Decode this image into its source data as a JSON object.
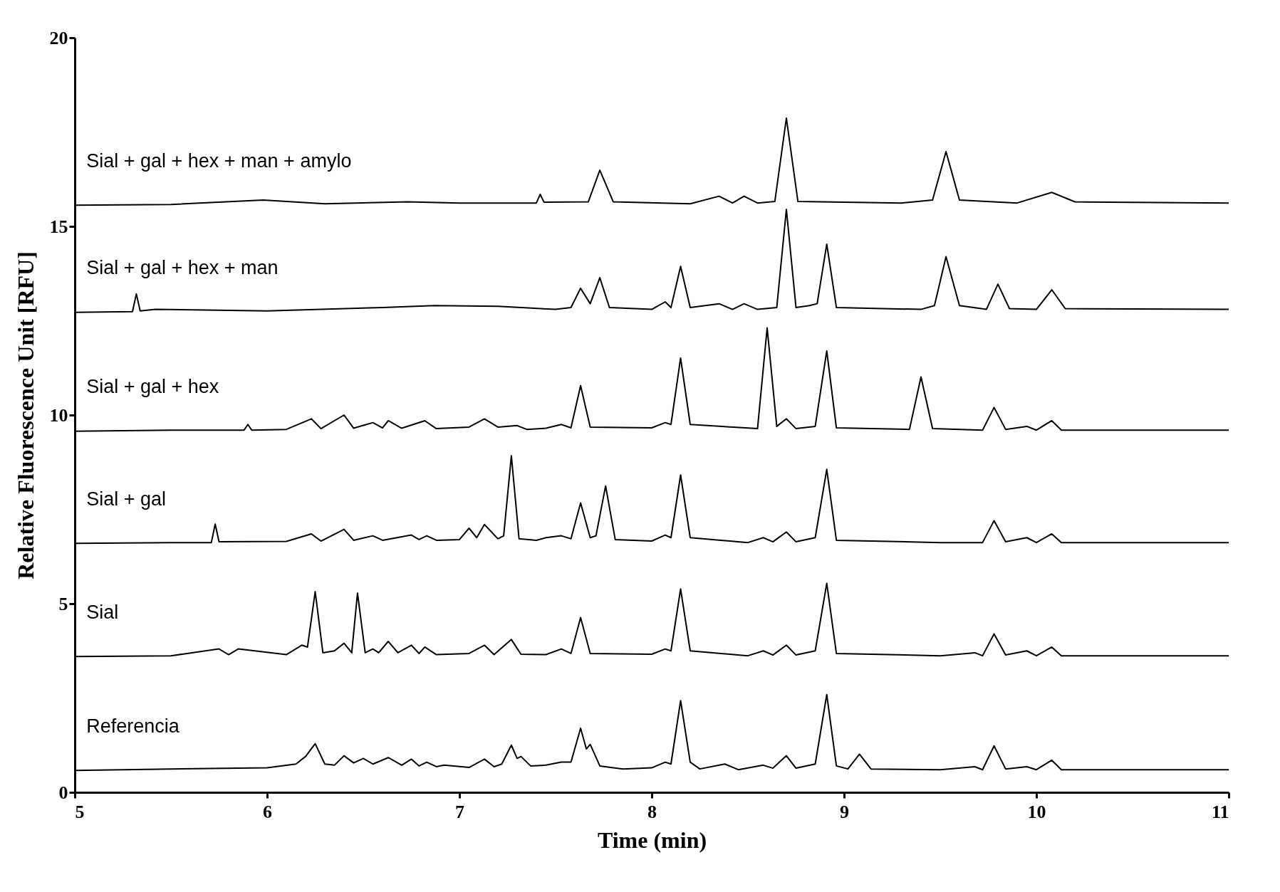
{
  "chart_data": {
    "type": "line",
    "xlabel": "Time (min)",
    "ylabel": "Relative Fluorescence Unit [RFU]",
    "xlim": [
      5,
      11
    ],
    "xticks": [
      5,
      6,
      7,
      8,
      9,
      10,
      11
    ],
    "ylim": [
      0,
      20
    ],
    "yticks": [
      0,
      5,
      10,
      15,
      20
    ],
    "grid": false,
    "legend": false,
    "series": [
      {
        "name": "Referencia",
        "color": "#000000",
        "x": [
          5.0,
          5.5,
          6.0,
          6.15,
          6.2,
          6.25,
          6.3,
          6.35,
          6.4,
          6.45,
          6.5,
          6.55,
          6.63,
          6.7,
          6.75,
          6.79,
          6.83,
          6.88,
          6.92,
          7.05,
          7.13,
          7.18,
          7.22,
          7.27,
          7.3,
          7.32,
          7.37,
          7.45,
          7.53,
          7.58,
          7.63,
          7.66,
          7.68,
          7.73,
          7.85,
          8.0,
          8.07,
          8.1,
          8.15,
          8.2,
          8.25,
          8.38,
          8.45,
          8.58,
          8.63,
          8.7,
          8.75,
          8.85,
          8.91,
          8.96,
          9.02,
          9.08,
          9.14,
          9.5,
          9.68,
          9.72,
          9.78,
          9.84,
          9.95,
          10.0,
          10.08,
          10.13,
          11.0
        ],
        "values": [
          0.58,
          0.62,
          0.65,
          0.75,
          0.95,
          1.29,
          0.75,
          0.72,
          0.97,
          0.78,
          0.9,
          0.75,
          0.92,
          0.72,
          0.88,
          0.7,
          0.8,
          0.68,
          0.72,
          0.66,
          0.88,
          0.68,
          0.75,
          1.25,
          0.9,
          0.95,
          0.7,
          0.72,
          0.8,
          0.8,
          1.7,
          1.15,
          1.27,
          0.7,
          0.62,
          0.65,
          0.8,
          0.75,
          2.43,
          0.8,
          0.62,
          0.75,
          0.6,
          0.72,
          0.64,
          0.97,
          0.64,
          0.75,
          2.59,
          0.7,
          0.62,
          1.01,
          0.62,
          0.6,
          0.68,
          0.6,
          1.23,
          0.62,
          0.68,
          0.6,
          0.85,
          0.6,
          0.6
        ]
      },
      {
        "name": "Sial",
        "color": "#000000",
        "x": [
          5.0,
          5.5,
          5.75,
          5.8,
          5.85,
          6.1,
          6.18,
          6.21,
          6.25,
          6.29,
          6.35,
          6.4,
          6.44,
          6.47,
          6.51,
          6.55,
          6.58,
          6.63,
          6.68,
          6.75,
          6.79,
          6.82,
          6.88,
          7.05,
          7.13,
          7.18,
          7.27,
          7.32,
          7.45,
          7.53,
          7.58,
          7.63,
          7.68,
          8.0,
          8.07,
          8.1,
          8.15,
          8.2,
          8.5,
          8.58,
          8.63,
          8.7,
          8.75,
          8.85,
          8.91,
          8.96,
          9.5,
          9.68,
          9.72,
          9.78,
          9.84,
          9.95,
          10.0,
          10.08,
          10.13,
          11.0
        ],
        "values": [
          3.6,
          3.62,
          3.8,
          3.65,
          3.8,
          3.65,
          3.9,
          3.85,
          5.32,
          3.7,
          3.75,
          3.95,
          3.7,
          5.28,
          3.7,
          3.8,
          3.7,
          4.0,
          3.7,
          3.9,
          3.68,
          3.85,
          3.65,
          3.68,
          3.9,
          3.65,
          4.05,
          3.66,
          3.65,
          3.8,
          3.68,
          4.63,
          3.68,
          3.66,
          3.8,
          3.75,
          5.39,
          3.75,
          3.62,
          3.75,
          3.64,
          3.9,
          3.64,
          3.75,
          5.54,
          3.68,
          3.62,
          3.7,
          3.62,
          4.2,
          3.64,
          3.75,
          3.62,
          3.85,
          3.62,
          3.62
        ]
      },
      {
        "name": "Sial + gal",
        "color": "#000000",
        "x": [
          5.0,
          5.5,
          5.71,
          5.73,
          5.75,
          6.1,
          6.23,
          6.28,
          6.4,
          6.45,
          6.55,
          6.6,
          6.75,
          6.79,
          6.83,
          6.88,
          7.0,
          7.05,
          7.09,
          7.13,
          7.2,
          7.23,
          7.27,
          7.31,
          7.4,
          7.45,
          7.53,
          7.58,
          7.63,
          7.68,
          7.71,
          7.76,
          7.81,
          8.0,
          8.07,
          8.1,
          8.15,
          8.2,
          8.5,
          8.58,
          8.63,
          8.7,
          8.75,
          8.85,
          8.91,
          8.96,
          9.5,
          9.72,
          9.78,
          9.84,
          9.95,
          10.0,
          10.08,
          10.13,
          11.0
        ],
        "values": [
          6.6,
          6.62,
          6.62,
          7.11,
          6.64,
          6.65,
          6.85,
          6.66,
          6.97,
          6.68,
          6.8,
          6.68,
          6.82,
          6.7,
          6.8,
          6.68,
          6.7,
          7.0,
          6.75,
          7.1,
          6.72,
          6.8,
          8.92,
          6.72,
          6.68,
          6.75,
          6.8,
          6.72,
          7.67,
          6.75,
          6.8,
          8.12,
          6.7,
          6.66,
          6.82,
          6.75,
          8.41,
          6.75,
          6.62,
          6.75,
          6.64,
          6.9,
          6.64,
          6.75,
          8.56,
          6.68,
          6.62,
          6.62,
          7.2,
          6.64,
          6.75,
          6.62,
          6.85,
          6.62,
          6.62
        ]
      },
      {
        "name": "Sial + gal + hex",
        "color": "#000000",
        "x": [
          5.0,
          5.5,
          5.88,
          5.9,
          5.92,
          6.1,
          6.23,
          6.28,
          6.4,
          6.45,
          6.55,
          6.6,
          6.63,
          6.7,
          6.82,
          6.88,
          7.05,
          7.13,
          7.2,
          7.3,
          7.35,
          7.45,
          7.53,
          7.58,
          7.63,
          7.68,
          8.0,
          8.07,
          8.1,
          8.15,
          8.2,
          8.55,
          8.6,
          8.65,
          8.7,
          8.75,
          8.85,
          8.91,
          8.96,
          9.34,
          9.4,
          9.46,
          9.72,
          9.78,
          9.84,
          9.95,
          10.0,
          10.08,
          10.13,
          11.0
        ],
        "values": [
          9.57,
          9.6,
          9.6,
          9.75,
          9.6,
          9.62,
          9.9,
          9.64,
          10.0,
          9.65,
          9.8,
          9.66,
          9.85,
          9.65,
          9.85,
          9.64,
          9.68,
          9.9,
          9.68,
          9.72,
          9.62,
          9.65,
          9.75,
          9.66,
          10.78,
          9.68,
          9.66,
          9.8,
          9.75,
          11.51,
          9.75,
          9.64,
          12.31,
          9.7,
          9.9,
          9.64,
          9.7,
          11.7,
          9.66,
          9.62,
          11.01,
          9.64,
          9.6,
          10.2,
          9.62,
          9.7,
          9.6,
          9.85,
          9.6,
          9.6
        ]
      },
      {
        "name": "Sial + gal + hex + man",
        "color": "#000000",
        "x": [
          5.0,
          5.3,
          5.32,
          5.34,
          5.42,
          6.0,
          6.6,
          6.87,
          7.2,
          7.5,
          7.58,
          7.63,
          7.68,
          7.73,
          7.78,
          8.0,
          8.07,
          8.1,
          8.15,
          8.2,
          8.35,
          8.42,
          8.48,
          8.55,
          8.65,
          8.7,
          8.75,
          8.82,
          8.86,
          8.91,
          8.96,
          9.4,
          9.47,
          9.53,
          9.6,
          9.74,
          9.8,
          9.86,
          10.0,
          10.08,
          10.15,
          11.0
        ],
        "values": [
          12.72,
          12.74,
          13.21,
          12.76,
          12.8,
          12.76,
          12.85,
          12.9,
          12.88,
          12.8,
          12.85,
          13.36,
          12.95,
          13.64,
          12.85,
          12.8,
          13.0,
          12.85,
          13.94,
          12.85,
          12.95,
          12.8,
          12.95,
          12.8,
          12.85,
          15.45,
          12.85,
          12.9,
          12.95,
          14.53,
          12.85,
          12.8,
          12.9,
          14.2,
          12.9,
          12.8,
          13.47,
          12.82,
          12.8,
          13.32,
          12.82,
          12.8
        ]
      },
      {
        "name": "Sial + gal + hex + man + amylo",
        "color": "#000000",
        "x": [
          5.0,
          5.5,
          5.98,
          6.3,
          6.73,
          7.0,
          7.4,
          7.42,
          7.44,
          7.67,
          7.73,
          7.8,
          8.2,
          8.35,
          8.42,
          8.48,
          8.55,
          8.64,
          8.7,
          8.76,
          9.3,
          9.46,
          9.53,
          9.6,
          9.9,
          10.08,
          10.2,
          11.0
        ],
        "values": [
          15.56,
          15.58,
          15.7,
          15.6,
          15.65,
          15.62,
          15.62,
          15.85,
          15.64,
          15.65,
          16.49,
          15.65,
          15.6,
          15.8,
          15.62,
          15.8,
          15.62,
          15.66,
          17.87,
          15.66,
          15.62,
          15.7,
          16.98,
          15.7,
          15.62,
          15.9,
          15.65,
          15.62
        ]
      }
    ]
  }
}
